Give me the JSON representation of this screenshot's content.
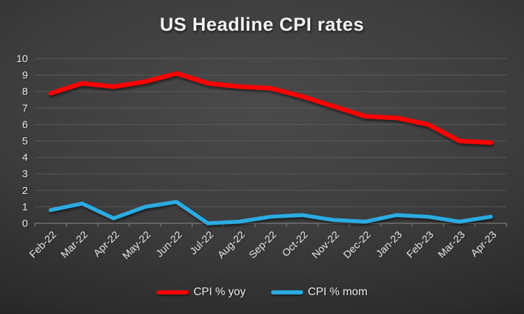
{
  "title": "US Headline CPI rates",
  "colors": {
    "yoy_red": "#fe0000",
    "mom_blue": "#29abe2",
    "gridline": "#5c5c5c",
    "axis": "#7e7e7e",
    "tick_text": "#e3e3e3",
    "title_text": "#f1f1f1"
  },
  "legend": [
    {
      "label": "CPI % yoy",
      "color": "#fe0000"
    },
    {
      "label": "CPI % mom",
      "color": "#29abe2"
    }
  ],
  "chart_data": {
    "type": "line",
    "title": "US Headline CPI rates",
    "categories": [
      "Feb-22",
      "Mar-22",
      "Apr-22",
      "May-22",
      "Jun-22",
      "Jul-22",
      "Aug-22",
      "Sep-22",
      "Oct-22",
      "Nov-22",
      "Dec-22",
      "Jan-23",
      "Feb-23",
      "Mar-23",
      "Apr-23"
    ],
    "series": [
      {
        "name": "CPI % yoy",
        "color": "#fe0000",
        "values": [
          7.9,
          8.5,
          8.3,
          8.6,
          9.1,
          8.5,
          8.3,
          8.2,
          7.7,
          7.1,
          6.5,
          6.4,
          6.0,
          5.0,
          4.9
        ]
      },
      {
        "name": "CPI % mom",
        "color": "#29abe2",
        "values": [
          0.8,
          1.2,
          0.3,
          1.0,
          1.3,
          0.0,
          0.1,
          0.4,
          0.5,
          0.2,
          0.1,
          0.5,
          0.4,
          0.1,
          0.4
        ]
      }
    ],
    "ylim": [
      0,
      10
    ],
    "yticks": [
      0,
      1,
      2,
      3,
      4,
      5,
      6,
      7,
      8,
      9,
      10
    ],
    "grid": true,
    "legend_position": "bottom",
    "x_label_rotation_deg": -45
  }
}
